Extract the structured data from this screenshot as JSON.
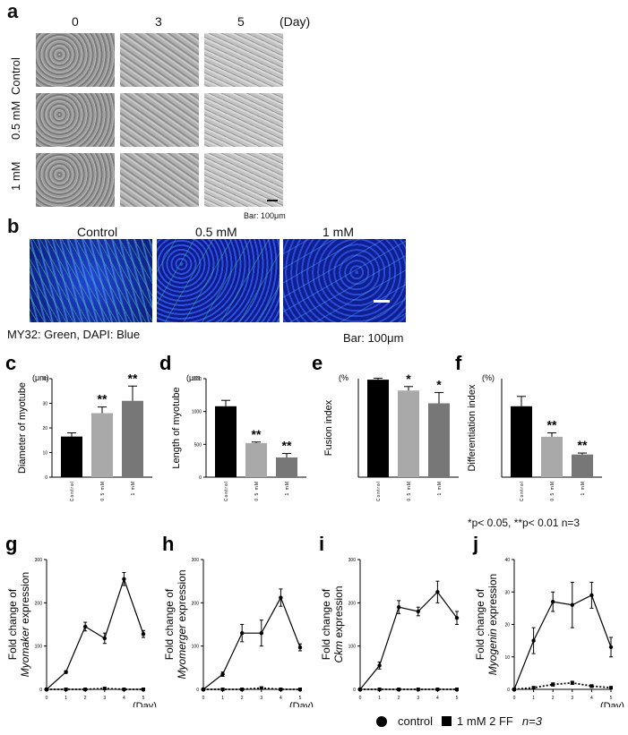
{
  "panel_a": {
    "label": "a",
    "days": [
      "0",
      "3",
      "5"
    ],
    "day_unit": "(Day)",
    "rows": [
      "Control",
      "0.5 mM",
      "1 mM"
    ],
    "scale_bar": "Bar: 100μm"
  },
  "panel_b": {
    "label": "b",
    "columns": [
      "Control",
      "0.5 mM",
      "1 mM"
    ],
    "stain_caption": "MY32: Green, DAPI: Blue",
    "scale_bar": "Bar: 100μm"
  },
  "bar_panels": {
    "significance_note": "*p< 0.05,  **p< 0.01 n=3"
  },
  "legend": {
    "control": "control",
    "treatment": "1 mM 2 FF",
    "n": "n=3"
  },
  "chart_data": [
    {
      "id": "c",
      "label": "c",
      "type": "bar",
      "unit": "(μm)",
      "ylabel": "Diameter of myotube",
      "categories": [
        "Control",
        "0.5 mM",
        "1 mM"
      ],
      "values": [
        16.5,
        26,
        31
      ],
      "errors": [
        1.5,
        2.5,
        6
      ],
      "significance": [
        "",
        "**",
        "**"
      ],
      "colors": [
        "#000000",
        "#a9a9a9",
        "#777777"
      ],
      "ylim": [
        0,
        40
      ],
      "yticks": [
        "0",
        "10",
        "20",
        "30",
        "40"
      ]
    },
    {
      "id": "d",
      "label": "d",
      "type": "bar",
      "unit": "(μm",
      "ylabel": "Length of myotube",
      "categories": [
        "Control",
        "0.5 mM",
        "1 mM"
      ],
      "values": [
        1080,
        520,
        300
      ],
      "errors": [
        90,
        15,
        60
      ],
      "significance": [
        "",
        "**",
        "**"
      ],
      "colors": [
        "#000000",
        "#a9a9a9",
        "#777777"
      ],
      "ylim": [
        0,
        1500
      ],
      "yticks": [
        "0",
        "500",
        "1000",
        "1500"
      ]
    },
    {
      "id": "e",
      "label": "e",
      "type": "bar",
      "unit": "(%",
      "ylabel": "Fusion index",
      "categories": [
        "Control",
        "0.5 mM",
        "1 mM"
      ],
      "values": [
        99,
        88,
        75
      ],
      "errors": [
        1.5,
        4,
        11
      ],
      "significance": [
        "",
        "*",
        "*"
      ],
      "colors": [
        "#000000",
        "#a9a9a9",
        "#777777"
      ],
      "ylim": [
        0,
        100
      ],
      "yticks": []
    },
    {
      "id": "f",
      "label": "f",
      "type": "bar",
      "unit": "(%)",
      "ylabel": "Differentiation index",
      "categories": [
        "Control",
        "0.5 mM",
        "1 mM"
      ],
      "values": [
        72,
        41,
        23
      ],
      "errors": [
        10,
        4,
        1.5
      ],
      "significance": [
        "",
        "**",
        "**"
      ],
      "colors": [
        "#000000",
        "#a9a9a9",
        "#777777"
      ],
      "ylim": [
        0,
        100
      ],
      "yticks": []
    },
    {
      "id": "g",
      "label": "g",
      "type": "line",
      "ylabel_pre": "Fold change of ",
      "ylabel_gene": "Myomaker",
      "ylabel_post": " expression",
      "xunit": "(Day)",
      "x": [
        0,
        1,
        2,
        3,
        4,
        5
      ],
      "ylim": [
        0,
        300
      ],
      "yticks": [
        "0",
        "100",
        "200",
        "300"
      ],
      "series": [
        {
          "values": [
            0,
            40,
            145,
            118,
            255,
            128
          ],
          "errors": [
            0,
            3,
            10,
            12,
            15,
            8
          ],
          "dashed": false
        },
        {
          "values": [
            0,
            0,
            0,
            2,
            0,
            0
          ],
          "errors": [
            0,
            0,
            0,
            2,
            0,
            0
          ],
          "dashed": true
        }
      ]
    },
    {
      "id": "h",
      "label": "h",
      "type": "line",
      "ylabel_pre": "Fold change of ",
      "ylabel_gene": "Myomerger",
      "ylabel_post": " expression",
      "xunit": "(Day)",
      "x": [
        0,
        1,
        2,
        3,
        4,
        5
      ],
      "ylim": [
        0,
        300
      ],
      "yticks": [
        "0",
        "100",
        "200",
        "300"
      ],
      "series": [
        {
          "values": [
            0,
            35,
            130,
            130,
            212,
            97
          ],
          "errors": [
            0,
            5,
            20,
            30,
            20,
            8
          ],
          "dashed": false
        },
        {
          "values": [
            0,
            0,
            0,
            3,
            0,
            0
          ],
          "errors": [
            0,
            0,
            0,
            2,
            0,
            0
          ],
          "dashed": true
        }
      ]
    },
    {
      "id": "i",
      "label": "i",
      "type": "line",
      "ylabel_pre": "Fold change of ",
      "ylabel_gene": "Ckm",
      "ylabel_post": " expression",
      "xunit": "",
      "x": [
        0,
        1,
        2,
        3,
        4,
        5
      ],
      "ylim": [
        0,
        300
      ],
      "yticks": [
        "0",
        "100",
        "200",
        "300"
      ],
      "series": [
        {
          "values": [
            0,
            55,
            190,
            180,
            225,
            165
          ],
          "errors": [
            0,
            8,
            15,
            10,
            25,
            15
          ],
          "dashed": false
        },
        {
          "values": [
            0,
            0,
            0,
            0,
            0,
            0
          ],
          "errors": [
            0,
            0,
            0,
            0,
            0,
            0
          ],
          "dashed": true
        }
      ]
    },
    {
      "id": "j",
      "label": "j",
      "type": "line",
      "ylabel_pre": "Fold change of ",
      "ylabel_gene": "Myogenin",
      "ylabel_post": " expression",
      "xunit": "(Day)",
      "x": [
        0,
        1,
        2,
        3,
        4,
        5
      ],
      "ylim": [
        0,
        40
      ],
      "yticks": [
        "0",
        "10",
        "20",
        "30",
        "40"
      ],
      "series": [
        {
          "values": [
            0,
            15,
            27,
            26,
            29,
            13
          ],
          "errors": [
            0,
            4,
            3,
            7,
            4,
            3
          ],
          "dashed": false
        },
        {
          "values": [
            0,
            0.5,
            1.5,
            2,
            1,
            0.5
          ],
          "errors": [
            0,
            0.3,
            0.5,
            0.5,
            0.4,
            0.3
          ],
          "dashed": true
        }
      ]
    }
  ]
}
